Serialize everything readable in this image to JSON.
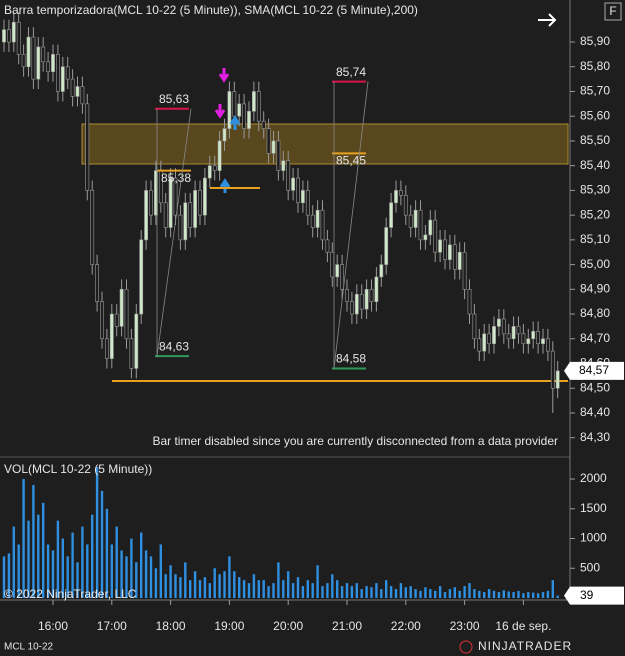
{
  "chart_data": [
    {
      "type": "candlestick",
      "title": "Barra temporizadora(MCL 10-22 (5 Minute)), SMA(MCL 10-22 (5 Minute),200)",
      "notice": "Bar timer disabled since you are currently disconnected from a data provider",
      "open": [
        85.9,
        85.95,
        85.9,
        85.98,
        85.85,
        85.8,
        85.92,
        85.75,
        85.88,
        85.82,
        85.78,
        85.85,
        85.7,
        85.8,
        85.75,
        85.68,
        85.72,
        85.65,
        85.3,
        85.0,
        84.85,
        84.7,
        84.62,
        84.8,
        84.75,
        84.9,
        84.7,
        84.58,
        84.8,
        85.1,
        85.3,
        85.2,
        85.38,
        85.25,
        85.15,
        85.35,
        85.2,
        85.1,
        85.25,
        85.15,
        85.3,
        85.2,
        85.35,
        85.4,
        85.38,
        85.5,
        85.55,
        85.7,
        85.6,
        85.65,
        85.55,
        85.62,
        85.7,
        85.58,
        85.55,
        85.45,
        85.5,
        85.38,
        85.42,
        85.3,
        85.35,
        85.25,
        85.3,
        85.2,
        85.15,
        85.22,
        85.1,
        85.05,
        84.95,
        85.0,
        84.9,
        84.85,
        84.8,
        84.88,
        84.82,
        84.9,
        84.85,
        84.95,
        85.0,
        85.15,
        85.25,
        85.3,
        85.28,
        85.2,
        85.15,
        85.22,
        85.1,
        85.12,
        85.18,
        85.05,
        85.1,
        85.02,
        85.08,
        84.98,
        85.05,
        84.9,
        84.8,
        84.7,
        84.65,
        84.72,
        84.68,
        84.75,
        84.78,
        84.72,
        84.7,
        84.75,
        84.72,
        84.68,
        84.7,
        84.73,
        84.68,
        84.7,
        84.65,
        84.5
      ],
      "high": [
        85.99,
        85.99,
        86.02,
        86.02,
        85.89,
        85.96,
        85.96,
        85.92,
        85.92,
        85.86,
        85.89,
        85.89,
        85.84,
        85.84,
        85.79,
        85.76,
        85.76,
        85.69,
        85.34,
        85.04,
        84.89,
        84.74,
        84.84,
        84.84,
        84.94,
        84.94,
        84.74,
        84.84,
        85.14,
        85.34,
        85.34,
        85.42,
        85.42,
        85.29,
        85.39,
        85.39,
        85.24,
        85.29,
        85.29,
        85.34,
        85.34,
        85.39,
        85.44,
        85.44,
        85.54,
        85.59,
        85.74,
        85.74,
        85.69,
        85.69,
        85.66,
        85.74,
        85.74,
        85.62,
        85.59,
        85.54,
        85.54,
        85.46,
        85.46,
        85.39,
        85.39,
        85.34,
        85.34,
        85.24,
        85.26,
        85.26,
        85.14,
        85.09,
        85.04,
        85.04,
        84.94,
        84.89,
        84.92,
        84.92,
        84.94,
        84.94,
        84.99,
        85.04,
        85.19,
        85.29,
        85.34,
        85.34,
        85.32,
        85.24,
        85.26,
        85.26,
        85.16,
        85.22,
        85.22,
        85.14,
        85.14,
        85.12,
        85.12,
        85.09,
        85.09,
        84.94,
        84.84,
        84.74,
        84.76,
        84.76,
        84.79,
        84.82,
        84.82,
        84.76,
        84.79,
        84.79,
        84.76,
        84.74,
        84.77,
        84.77,
        84.74,
        84.74,
        84.69,
        84.61
      ],
      "low": [
        85.86,
        85.86,
        85.86,
        85.81,
        85.76,
        85.76,
        85.71,
        85.71,
        85.78,
        85.74,
        85.74,
        85.66,
        85.66,
        85.71,
        85.64,
        85.64,
        85.61,
        85.26,
        84.96,
        84.81,
        84.66,
        84.58,
        84.58,
        84.71,
        84.71,
        84.66,
        84.54,
        84.54,
        84.76,
        85.06,
        85.16,
        85.16,
        85.21,
        85.11,
        85.11,
        85.16,
        85.06,
        85.06,
        85.11,
        85.11,
        85.16,
        85.16,
        85.31,
        85.34,
        85.34,
        85.46,
        85.51,
        85.56,
        85.56,
        85.51,
        85.51,
        85.58,
        85.54,
        85.51,
        85.41,
        85.41,
        85.34,
        85.34,
        85.26,
        85.26,
        85.21,
        85.21,
        85.16,
        85.11,
        85.11,
        85.06,
        85.01,
        84.91,
        84.91,
        84.86,
        84.81,
        84.76,
        84.76,
        84.78,
        84.78,
        84.81,
        84.81,
        84.91,
        84.96,
        85.11,
        85.21,
        85.24,
        85.16,
        85.11,
        85.11,
        85.06,
        85.06,
        85.08,
        85.01,
        85.01,
        84.98,
        84.98,
        84.94,
        84.94,
        84.86,
        84.76,
        84.66,
        84.61,
        84.61,
        84.64,
        84.64,
        84.71,
        84.68,
        84.66,
        84.66,
        84.68,
        84.64,
        84.64,
        84.66,
        84.64,
        84.64,
        84.61,
        84.4,
        84.46
      ],
      "close": [
        85.95,
        85.9,
        85.98,
        85.85,
        85.8,
        85.92,
        85.75,
        85.88,
        85.82,
        85.78,
        85.85,
        85.7,
        85.8,
        85.75,
        85.68,
        85.72,
        85.65,
        85.3,
        85.0,
        84.85,
        84.7,
        84.62,
        84.8,
        84.75,
        84.9,
        84.7,
        84.58,
        84.8,
        85.1,
        85.3,
        85.2,
        85.38,
        85.25,
        85.15,
        85.35,
        85.2,
        85.1,
        85.25,
        85.15,
        85.3,
        85.2,
        85.35,
        85.4,
        85.38,
        85.5,
        85.55,
        85.7,
        85.6,
        85.65,
        85.55,
        85.62,
        85.7,
        85.58,
        85.55,
        85.45,
        85.5,
        85.38,
        85.42,
        85.3,
        85.35,
        85.25,
        85.3,
        85.2,
        85.15,
        85.22,
        85.1,
        85.05,
        84.95,
        85.0,
        84.9,
        84.85,
        84.8,
        84.88,
        84.82,
        84.9,
        84.85,
        84.95,
        85.0,
        85.15,
        85.25,
        85.3,
        85.28,
        85.2,
        85.15,
        85.22,
        85.1,
        85.12,
        85.18,
        85.05,
        85.1,
        85.02,
        85.08,
        84.98,
        85.05,
        84.9,
        84.8,
        84.7,
        84.65,
        84.72,
        84.68,
        84.75,
        84.78,
        84.72,
        84.7,
        84.75,
        84.72,
        84.68,
        84.7,
        84.73,
        84.68,
        84.7,
        84.65,
        84.5,
        84.57
      ],
      "up_color": "#cfe8c8",
      "down_color": "#1e1e1e",
      "wick_color": "#9a9a9a",
      "ylim": [
        84.23,
        86.07
      ],
      "yticks": [
        {
          "value": 84.3,
          "label": "84,30"
        },
        {
          "value": 84.4,
          "label": "84,40"
        },
        {
          "value": 84.5,
          "label": "84,50"
        },
        {
          "value": 84.6,
          "label": "84,60"
        },
        {
          "value": 84.7,
          "label": "84,70"
        },
        {
          "value": 84.8,
          "label": "84,80"
        },
        {
          "value": 84.9,
          "label": "84,90"
        },
        {
          "value": 85.0,
          "label": "85,00"
        },
        {
          "value": 85.1,
          "label": "85,10"
        },
        {
          "value": 85.2,
          "label": "85,20"
        },
        {
          "value": 85.3,
          "label": "85,30"
        },
        {
          "value": 85.4,
          "label": "85,40"
        },
        {
          "value": 85.5,
          "label": "85,50"
        },
        {
          "value": 85.6,
          "label": "85,60"
        },
        {
          "value": 85.7,
          "label": "85,70"
        },
        {
          "value": 85.8,
          "label": "85,80"
        },
        {
          "value": 85.9,
          "label": "85,90"
        }
      ],
      "current": {
        "value": 84.57,
        "label": "84,57"
      },
      "annotations": [
        {
          "value": 85.63,
          "label": "85,63",
          "color": "#d8154b"
        },
        {
          "value": 85.38,
          "label": "85,38",
          "color": "#e8a020"
        },
        {
          "value": 84.63,
          "label": "84,63",
          "color": "#2e9a5a"
        },
        {
          "value": 85.74,
          "label": "85,74",
          "color": "#d8154b"
        },
        {
          "value": 85.45,
          "label": "85,45",
          "color": "#e8a020"
        },
        {
          "value": 84.58,
          "label": "84,58",
          "color": "#2e9a5a"
        }
      ]
    },
    {
      "type": "bar",
      "title": "VOL(MCL 10-22 (5 Minute))",
      "categories": [
        null,
        null,
        null,
        null,
        null,
        null,
        null,
        null,
        null,
        null,
        "16:00",
        null,
        null,
        null,
        null,
        null,
        null,
        null,
        null,
        null,
        null,
        null,
        "17:00",
        null,
        null,
        null,
        null,
        null,
        null,
        null,
        null,
        null,
        null,
        null,
        "18:00",
        null,
        null,
        null,
        null,
        null,
        null,
        null,
        null,
        null,
        null,
        null,
        "19:00",
        null,
        null,
        null,
        null,
        null,
        null,
        null,
        null,
        null,
        null,
        null,
        "20:00",
        null,
        null,
        null,
        null,
        null,
        null,
        null,
        null,
        null,
        null,
        null,
        "21:00",
        null,
        null,
        null,
        null,
        null,
        null,
        null,
        null,
        null,
        null,
        null,
        "22:00",
        null,
        null,
        null,
        null,
        null,
        null,
        null,
        null,
        null,
        null,
        null,
        "23:00",
        null,
        null,
        null,
        null,
        null,
        null,
        null,
        null,
        null,
        null,
        null,
        "16 de sep.",
        null,
        null,
        null,
        null,
        null,
        null,
        null
      ],
      "values": [
        700,
        750,
        1200,
        900,
        2000,
        1300,
        1900,
        1400,
        1600,
        900,
        800,
        1300,
        1000,
        700,
        1100,
        600,
        1200,
        900,
        1400,
        2200,
        1800,
        1500,
        900,
        1200,
        800,
        700,
        1000,
        600,
        1100,
        800,
        700,
        500,
        900,
        400,
        550,
        400,
        350,
        600,
        300,
        450,
        300,
        350,
        250,
        500,
        400,
        450,
        700,
        450,
        350,
        300,
        250,
        400,
        300,
        300,
        200,
        250,
        600,
        300,
        450,
        250,
        350,
        200,
        300,
        250,
        550,
        200,
        250,
        400,
        300,
        200,
        250,
        200,
        250,
        150,
        200,
        180,
        250,
        150,
        300,
        200,
        150,
        250,
        180,
        200,
        150,
        120,
        180,
        150,
        120,
        200,
        100,
        150,
        180,
        120,
        200,
        250,
        150,
        120,
        100,
        150,
        120,
        100,
        130,
        110,
        100,
        120,
        80,
        100,
        90,
        80,
        100,
        120,
        300,
        39
      ],
      "color": "#2f8fe0",
      "ylim": [
        0,
        2320
      ],
      "yticks": [
        500,
        1000,
        1500,
        2000
      ]
    }
  ],
  "copyright": "© 2022 NinjaTrader, LLC",
  "instrument": "MCL 10-22",
  "logo": "NINJATRADER",
  "button": "F"
}
